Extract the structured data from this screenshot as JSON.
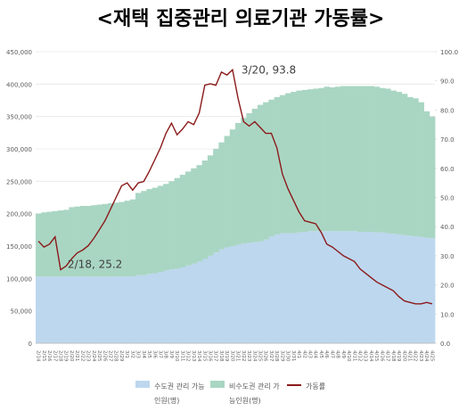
{
  "chart_data": {
    "type": "combo",
    "title": "<재택 집중관리 의료기관 가동률>",
    "categories": [
      "2/14",
      "2/15",
      "2/16",
      "2/17",
      "2/18",
      "2/19",
      "2/20",
      "2/21",
      "2/22",
      "2/23",
      "2/24",
      "2/25",
      "2/26",
      "2/27",
      "2/28",
      "2/29",
      "3/1",
      "3/2",
      "3/3",
      "3/4",
      "3/5",
      "3/6",
      "3/7",
      "3/8",
      "3/9",
      "3/10",
      "3/11",
      "3/12",
      "3/13",
      "3/14",
      "3/15",
      "3/16",
      "3/17",
      "3/18",
      "3/19",
      "3/20",
      "3/21",
      "3/22",
      "3/23",
      "3/24",
      "3/25",
      "3/26",
      "3/27",
      "3/28",
      "3/29",
      "3/30",
      "3/31",
      "4/1",
      "4/2",
      "4/3",
      "4/4",
      "4/5",
      "4/6",
      "4/7",
      "4/8",
      "4/9",
      "4/10",
      "4/11",
      "4/12",
      "4/13",
      "4/14",
      "4/15",
      "4/16",
      "4/17",
      "4/18",
      "4/19",
      "4/20",
      "4/21",
      "4/22",
      "4/23",
      "4/24",
      "4/25"
    ],
    "series": [
      {
        "name": "수도권 관리 가능인원(명)",
        "color": "#bdd7ee",
        "stack": true,
        "values": [
          103000,
          103000,
          103000,
          103000,
          103000,
          103000,
          103000,
          103000,
          103000,
          103000,
          103000,
          103000,
          103000,
          103000,
          103000,
          103000,
          103000,
          103000,
          105000,
          105000,
          107000,
          108000,
          110000,
          112000,
          114000,
          115000,
          117000,
          120000,
          123000,
          126000,
          130000,
          135000,
          140000,
          145000,
          148000,
          150000,
          152000,
          154000,
          155000,
          156000,
          157000,
          160000,
          165000,
          168000,
          170000,
          170000,
          170000,
          171000,
          172000,
          173000,
          173000,
          173000,
          173000,
          173000,
          173000,
          173000,
          173000,
          173000,
          172000,
          172000,
          172000,
          171000,
          171000,
          170000,
          169000,
          168000,
          167000,
          166000,
          165000,
          164000,
          163000,
          162000
        ]
      },
      {
        "name": "비수도권 관리 가능인원(명)",
        "color": "#a9d6c3",
        "stack": true,
        "values": [
          97000,
          99000,
          100000,
          101000,
          102000,
          103000,
          107000,
          108000,
          109000,
          109000,
          110000,
          111000,
          112000,
          113000,
          114000,
          115000,
          117000,
          119000,
          127000,
          130000,
          131000,
          132000,
          133000,
          134000,
          136000,
          140000,
          143000,
          145000,
          147000,
          149000,
          152000,
          155000,
          160000,
          165000,
          172000,
          180000,
          188000,
          194000,
          200000,
          206000,
          211000,
          212000,
          211000,
          212000,
          213000,
          216000,
          218000,
          219000,
          219000,
          219000,
          220000,
          221000,
          223000,
          222000,
          223000,
          224000,
          224000,
          224000,
          225000,
          225000,
          225000,
          225000,
          223000,
          223000,
          221000,
          220000,
          218000,
          214000,
          213000,
          208000,
          195000,
          188000
        ]
      },
      {
        "name": "가동률",
        "color": "#8b1a1a",
        "axis": "y2",
        "values": [
          35,
          33,
          34,
          36.5,
          25.2,
          26.5,
          29,
          31,
          32,
          33.5,
          36,
          39,
          42,
          46,
          50,
          54,
          55,
          52.5,
          55,
          55.5,
          59,
          63,
          67,
          72,
          75.5,
          71.5,
          73.5,
          76,
          75,
          79,
          88.5,
          89,
          88.5,
          93,
          92,
          93.8,
          84,
          76,
          74.5,
          76,
          74,
          72,
          72,
          67,
          58,
          53,
          49,
          45,
          42,
          41.5,
          41,
          38,
          34,
          33,
          31.5,
          30,
          29,
          28,
          25.5,
          24,
          22.5,
          21,
          20,
          19,
          18,
          16,
          14.5,
          14,
          13.5,
          13.5,
          14,
          13.5
        ]
      }
    ],
    "ylim": [
      0,
      450000
    ],
    "yticks": [
      0,
      {
        "value": 50000,
        "label": "50,000"
      },
      {
        "value": 100000,
        "label": "100,000"
      },
      {
        "value": 150000,
        "label": "150,000"
      },
      {
        "value": 200000,
        "label": "200,000"
      },
      {
        "value": 250000,
        "label": "250,000"
      },
      {
        "value": 300000,
        "label": "300,000"
      },
      {
        "value": 350000,
        "label": "350,000"
      },
      {
        "value": 400000,
        "label": "400,000"
      },
      {
        "value": 450000,
        "label": "450,000"
      }
    ],
    "y2lim": [
      0,
      100
    ],
    "y2ticks": [
      {
        "value": 0,
        "label": "0.0"
      },
      {
        "value": 10,
        "label": "10.0"
      },
      {
        "value": 20,
        "label": "20.0"
      },
      {
        "value": 30,
        "label": "30.0"
      },
      {
        "value": 40,
        "label": "40.0"
      },
      {
        "value": 50,
        "label": "50.0"
      },
      {
        "value": 60,
        "label": "60.0"
      },
      {
        "value": 70,
        "label": "70.0"
      },
      {
        "value": 80,
        "label": "80.0"
      },
      {
        "value": 90,
        "label": "90.0"
      },
      {
        "value": 100,
        "label": "100.0"
      }
    ],
    "annotations": [
      {
        "text": "2/18, 25.2",
        "series": 2,
        "index": 4
      },
      {
        "text": "3/20, 93.8",
        "series": 2,
        "index": 35
      }
    ],
    "grid": true,
    "legend": "bottom"
  }
}
